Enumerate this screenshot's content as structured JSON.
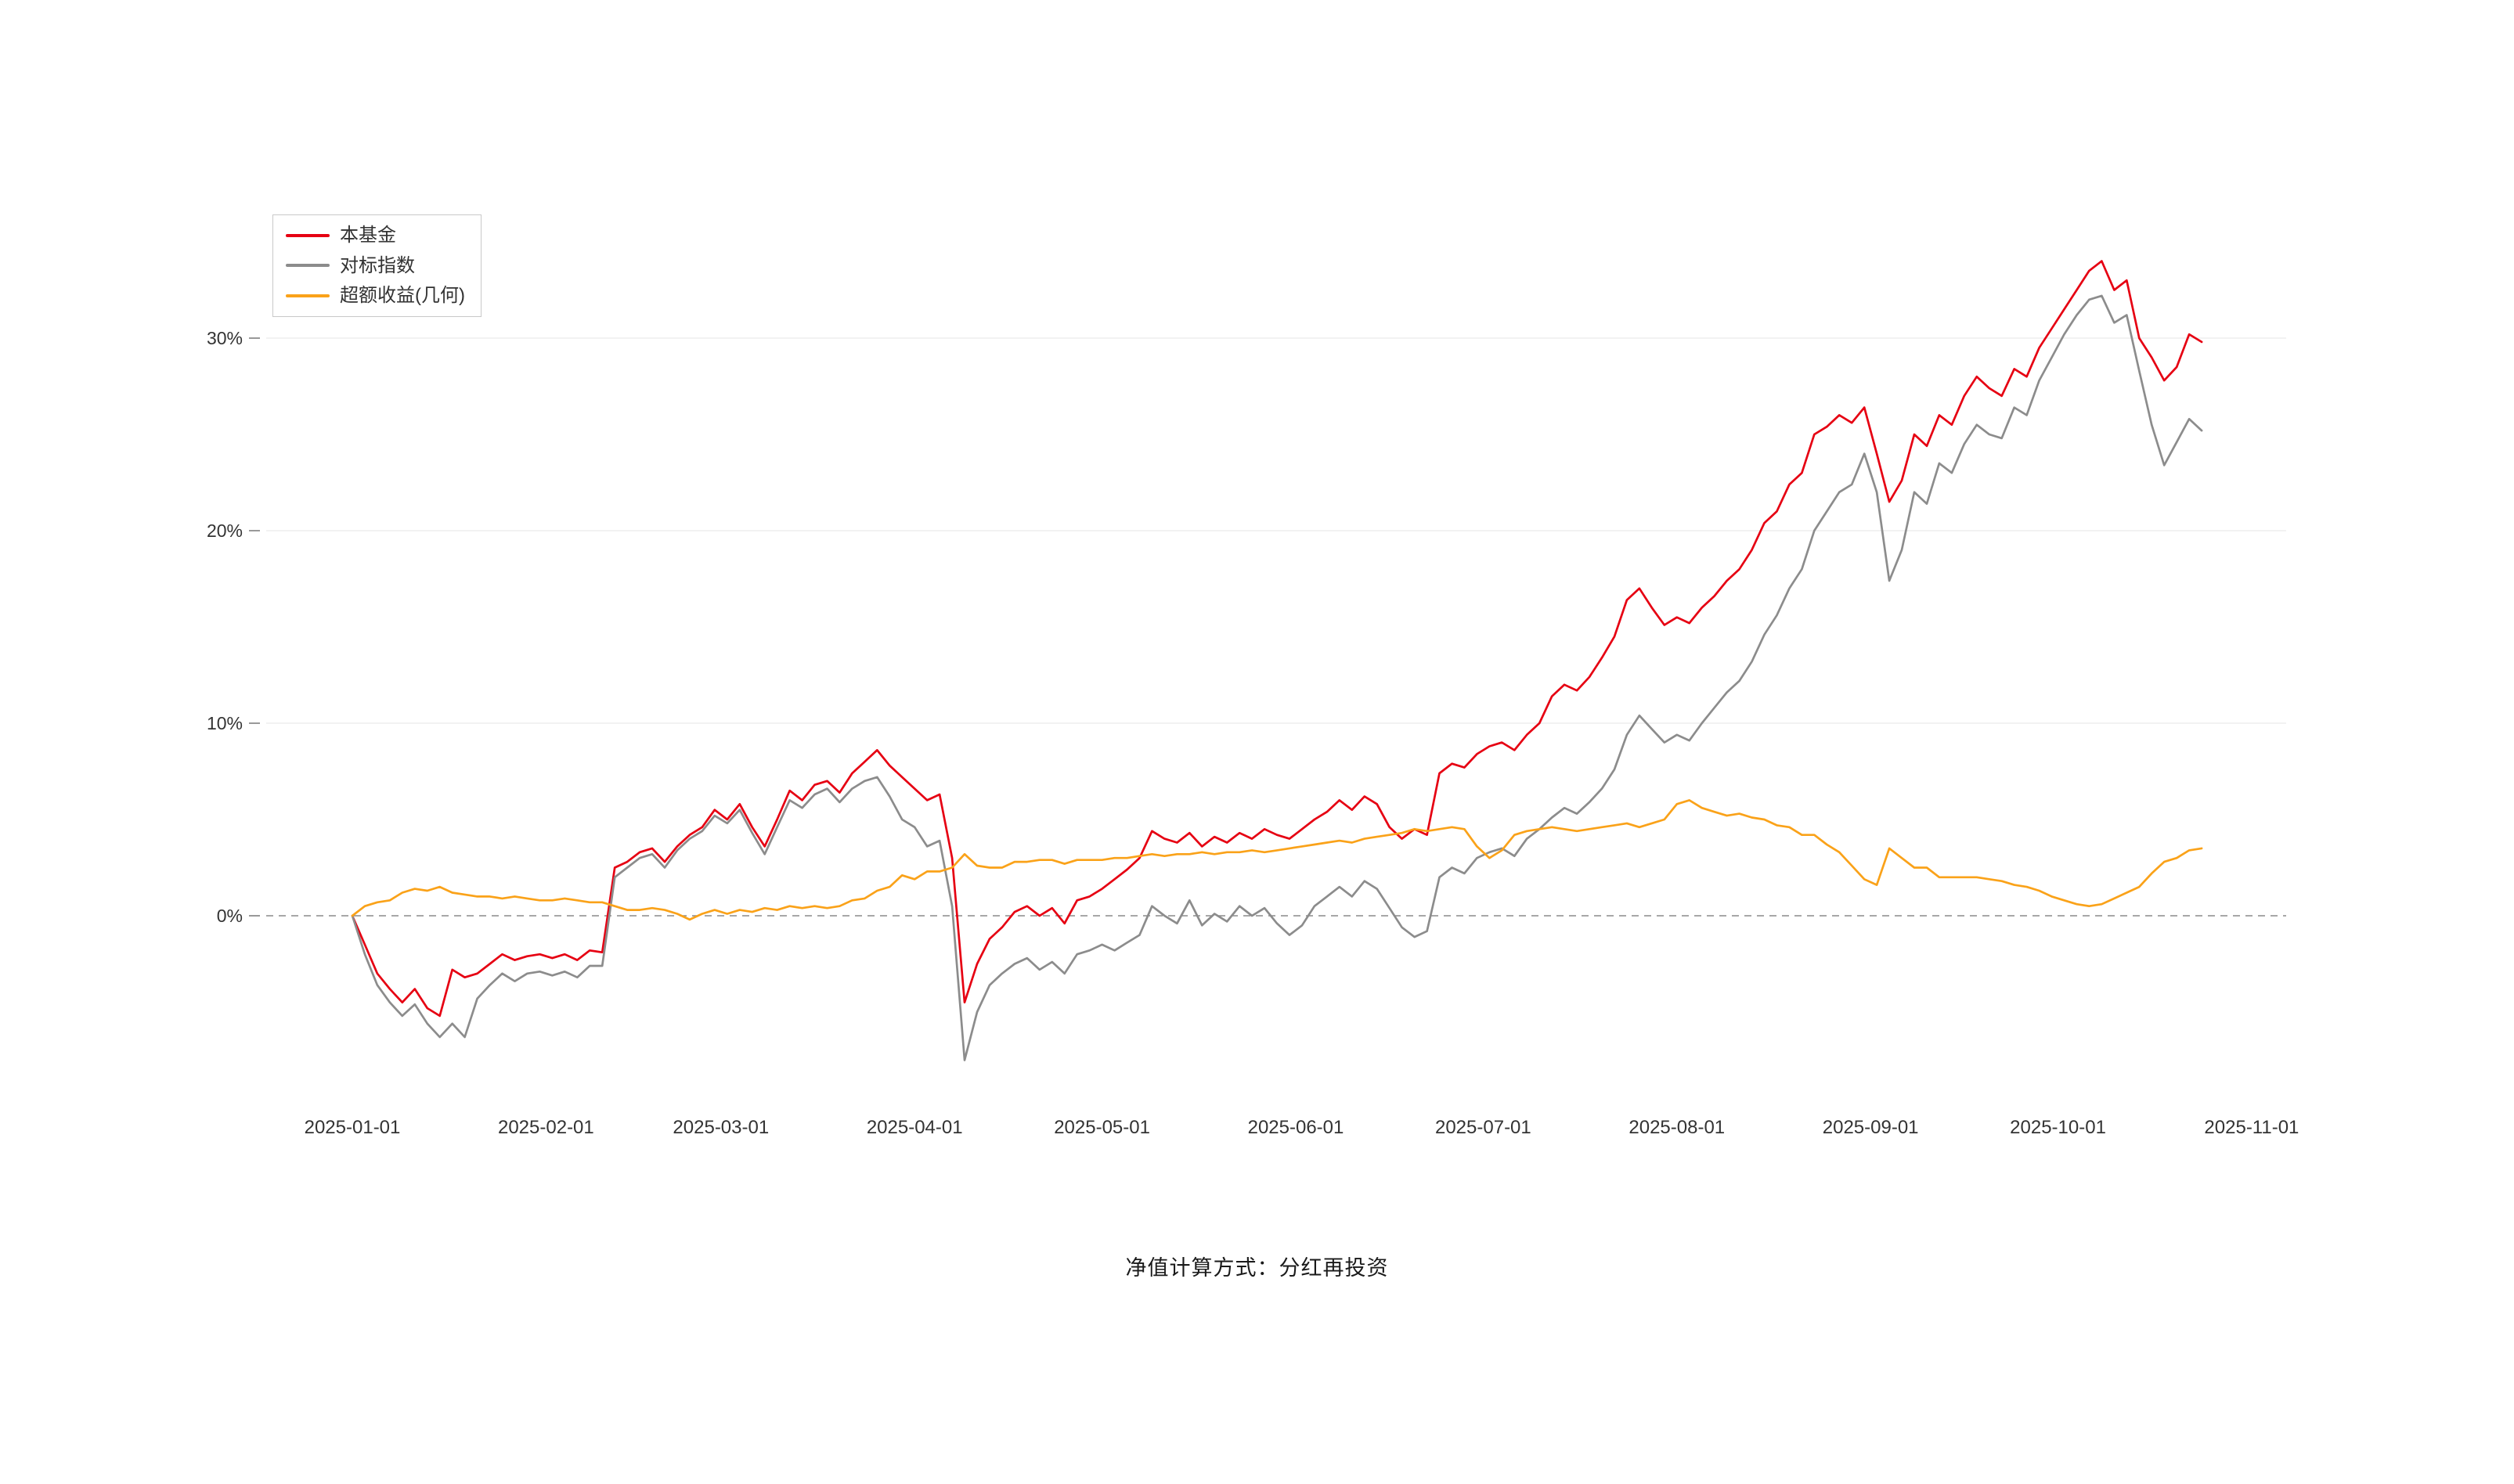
{
  "footer": {
    "note": "净值计算方式：分红再投资"
  },
  "chart_data": {
    "type": "line",
    "title": "",
    "x_unit": "days since 2025-01-01",
    "day_step": 2,
    "ylim": [
      -9,
      35
    ],
    "grid": "horizontal-only",
    "legend_position": "top-left",
    "zero_line_style": "dashed",
    "colors": {
      "gridline": "#ededed",
      "zero_line": "#8a8a8a",
      "axis_text": "#333333",
      "tick": "#999999"
    },
    "y_axis": {
      "ticks": [
        {
          "label": "0%",
          "value": 0
        },
        {
          "label": "10%",
          "value": 10
        },
        {
          "label": "20%",
          "value": 20
        },
        {
          "label": "30%",
          "value": 30
        }
      ]
    },
    "x_axis": {
      "ticks": [
        {
          "label": "2025-01-01",
          "day": 0
        },
        {
          "label": "2025-02-01",
          "day": 31
        },
        {
          "label": "2025-03-01",
          "day": 59
        },
        {
          "label": "2025-04-01",
          "day": 90
        },
        {
          "label": "2025-05-01",
          "day": 120
        },
        {
          "label": "2025-06-01",
          "day": 151
        },
        {
          "label": "2025-07-01",
          "day": 181
        },
        {
          "label": "2025-08-01",
          "day": 212
        },
        {
          "label": "2025-09-01",
          "day": 243
        },
        {
          "label": "2025-10-01",
          "day": 273
        },
        {
          "label": "2025-11-01",
          "day": 304
        }
      ]
    },
    "series": [
      {
        "id": "fund",
        "name": "本基金",
        "color": "#e60012",
        "values": [
          0,
          -1.5,
          -3,
          -3.8,
          -4.5,
          -3.8,
          -4.8,
          -5.2,
          -2.8,
          -3.2,
          -3,
          -2.5,
          -2,
          -2.3,
          -2.1,
          -2,
          -2.2,
          -2,
          -2.3,
          -1.8,
          -1.9,
          2.5,
          2.8,
          3.3,
          3.5,
          2.8,
          3.6,
          4.2,
          4.6,
          5.5,
          5,
          5.8,
          4.6,
          3.6,
          5,
          6.5,
          6,
          6.8,
          7,
          6.4,
          7.4,
          8,
          8.6,
          7.8,
          7.2,
          6.6,
          6,
          6.3,
          3,
          -4.5,
          -2.5,
          -1.2,
          -0.6,
          0.2,
          0.5,
          0,
          0.4,
          -0.4,
          0.8,
          1,
          1.4,
          1.9,
          2.4,
          3,
          4.4,
          4,
          3.8,
          4.3,
          3.6,
          4.1,
          3.8,
          4.3,
          4,
          4.5,
          4.2,
          4,
          4.5,
          5,
          5.4,
          6,
          5.5,
          6.2,
          5.8,
          4.6,
          4,
          4.5,
          4.2,
          7.4,
          7.9,
          7.7,
          8.4,
          8.8,
          9,
          8.6,
          9.4,
          10,
          11.4,
          12,
          11.7,
          12.4,
          13.4,
          14.5,
          16.4,
          17,
          16,
          15.1,
          15.5,
          15.2,
          16,
          16.6,
          17.4,
          18,
          19,
          20.4,
          21,
          22.4,
          23,
          25,
          25.4,
          26,
          25.6,
          26.4,
          24,
          21.5,
          22.6,
          25,
          24.4,
          26,
          25.5,
          27,
          28,
          27.4,
          27,
          28.4,
          28,
          29.5,
          30.5,
          31.5,
          32.5,
          33.5,
          34,
          32.5,
          33,
          30,
          29,
          27.8,
          28.5,
          30.2,
          29.8
        ]
      },
      {
        "id": "benchmark",
        "name": "对标指数",
        "color": "#8c8c8c",
        "values": [
          0,
          -2,
          -3.6,
          -4.5,
          -5.2,
          -4.6,
          -5.6,
          -6.3,
          -5.6,
          -6.3,
          -4.3,
          -3.6,
          -3,
          -3.4,
          -3,
          -2.9,
          -3.1,
          -2.9,
          -3.2,
          -2.6,
          -2.6,
          2,
          2.5,
          3,
          3.2,
          2.5,
          3.4,
          4,
          4.4,
          5.2,
          4.8,
          5.5,
          4.3,
          3.2,
          4.6,
          6,
          5.6,
          6.3,
          6.6,
          5.9,
          6.6,
          7,
          7.2,
          6.2,
          5,
          4.6,
          3.6,
          3.9,
          0.5,
          -7.5,
          -5,
          -3.6,
          -3,
          -2.5,
          -2.2,
          -2.8,
          -2.4,
          -3,
          -2,
          -1.8,
          -1.5,
          -1.8,
          -1.4,
          -1,
          0.5,
          0,
          -0.4,
          0.8,
          -0.5,
          0.1,
          -0.3,
          0.5,
          0,
          0.4,
          -0.4,
          -1,
          -0.5,
          0.5,
          1,
          1.5,
          1,
          1.8,
          1.4,
          0.4,
          -0.6,
          -1.1,
          -0.8,
          2,
          2.5,
          2.2,
          3,
          3.3,
          3.5,
          3.1,
          4,
          4.5,
          5.1,
          5.6,
          5.3,
          5.9,
          6.6,
          7.6,
          9.4,
          10.4,
          9.7,
          9,
          9.4,
          9.1,
          10,
          10.8,
          11.6,
          12.2,
          13.2,
          14.6,
          15.6,
          17,
          18,
          20,
          21,
          22,
          22.4,
          24,
          22,
          17.4,
          19,
          22,
          21.4,
          23.5,
          23,
          24.5,
          25.5,
          25,
          24.8,
          26.4,
          26,
          27.8,
          29,
          30.2,
          31.2,
          32,
          32.2,
          30.8,
          31.2,
          28.3,
          25.5,
          23.4,
          24.6,
          25.8,
          25.2
        ]
      },
      {
        "id": "excess",
        "name": "超额收益(几何)",
        "color": "#faa219",
        "values": [
          0,
          0.5,
          0.7,
          0.8,
          1.2,
          1.4,
          1.3,
          1.5,
          1.2,
          1.1,
          1,
          1,
          0.9,
          1,
          0.9,
          0.8,
          0.8,
          0.9,
          0.8,
          0.7,
          0.7,
          0.5,
          0.3,
          0.3,
          0.4,
          0.3,
          0.1,
          -0.2,
          0.1,
          0.3,
          0.1,
          0.3,
          0.2,
          0.4,
          0.3,
          0.5,
          0.4,
          0.5,
          0.4,
          0.5,
          0.8,
          0.9,
          1.3,
          1.5,
          2.1,
          1.9,
          2.3,
          2.3,
          2.5,
          3.2,
          2.6,
          2.5,
          2.5,
          2.8,
          2.8,
          2.9,
          2.9,
          2.7,
          2.9,
          2.9,
          2.9,
          3,
          3,
          3.1,
          3.2,
          3.1,
          3.2,
          3.2,
          3.3,
          3.2,
          3.3,
          3.3,
          3.4,
          3.3,
          3.4,
          3.5,
          3.6,
          3.7,
          3.8,
          3.9,
          3.8,
          4,
          4.1,
          4.2,
          4.3,
          4.5,
          4.4,
          4.5,
          4.6,
          4.5,
          3.6,
          3,
          3.4,
          4.2,
          4.4,
          4.5,
          4.6,
          4.5,
          4.4,
          4.5,
          4.6,
          4.7,
          4.8,
          4.6,
          4.8,
          5,
          5.8,
          6,
          5.6,
          5.4,
          5.2,
          5.3,
          5.1,
          5,
          4.7,
          4.6,
          4.2,
          4.2,
          3.7,
          3.3,
          2.6,
          1.9,
          1.6,
          3.5,
          3,
          2.5,
          2.5,
          2,
          2,
          2,
          2,
          1.9,
          1.8,
          1.6,
          1.5,
          1.3,
          1,
          0.8,
          0.6,
          0.5,
          0.6,
          0.9,
          1.2,
          1.5,
          2.2,
          2.8,
          3,
          3.4,
          3.5
        ]
      }
    ]
  }
}
